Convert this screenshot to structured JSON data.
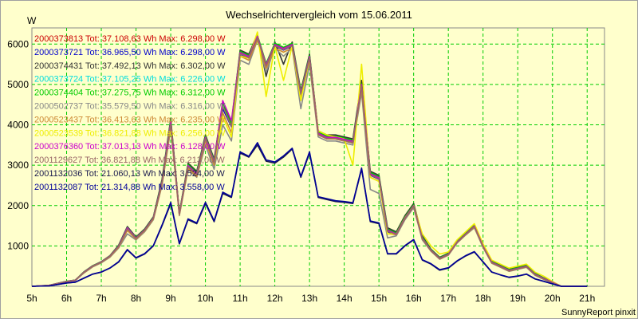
{
  "chart_data": {
    "type": "line",
    "title": "Wechselrichtervergleich vom 15.06.2011",
    "ylabel": "W",
    "footer": "SunnyReport pinxit",
    "ylim": [
      0,
      6400
    ],
    "y_ticks": [
      1000,
      2000,
      3000,
      4000,
      5000,
      6000
    ],
    "x_ticks": [
      "5h",
      "6h",
      "7h",
      "8h",
      "9h",
      "10h",
      "11h",
      "12h",
      "13h",
      "14h",
      "15h",
      "16h",
      "17h",
      "18h",
      "19h",
      "20h",
      "21h"
    ],
    "xlim": [
      5,
      21.5
    ],
    "grid": true,
    "legend_position": "top-left",
    "x": [
      5.0,
      5.5,
      6.0,
      6.25,
      6.5,
      6.75,
      7.0,
      7.25,
      7.5,
      7.75,
      8.0,
      8.25,
      8.5,
      8.75,
      9.0,
      9.25,
      9.5,
      9.75,
      10.0,
      10.25,
      10.5,
      10.75,
      11.0,
      11.25,
      11.5,
      11.75,
      12.0,
      12.25,
      12.5,
      12.75,
      13.0,
      13.25,
      13.5,
      13.75,
      14.0,
      14.25,
      14.5,
      14.75,
      15.0,
      15.25,
      15.5,
      15.75,
      16.0,
      16.25,
      16.5,
      16.75,
      17.0,
      17.25,
      17.5,
      17.75,
      18.0,
      18.25,
      18.5,
      18.75,
      19.0,
      19.25,
      19.5,
      19.75,
      20.0,
      20.25,
      20.5,
      20.75,
      21.0
    ],
    "series": [
      {
        "name": "2000373813 Tot: 37.108,63 Wh Max: 6.298,00 W",
        "color": "#cc0000",
        "values": [
          0,
          20,
          120,
          150,
          350,
          500,
          600,
          750,
          1000,
          1450,
          1200,
          1400,
          1700,
          2600,
          4100,
          1800,
          3000,
          2800,
          3700,
          3100,
          4500,
          4000,
          5800,
          5700,
          6200,
          5500,
          6000,
          5900,
          6000,
          4800,
          5700,
          3800,
          3700,
          3700,
          3650,
          3600,
          5000,
          2800,
          2700,
          1400,
          1300,
          1700,
          2000,
          1200,
          900,
          700,
          800,
          1100,
          1300,
          1500,
          1000,
          600,
          500,
          400,
          450,
          500,
          300,
          200,
          100,
          0,
          0,
          0,
          0
        ]
      },
      {
        "name": "2000373721 Tot: 36.965,50 Wh Max: 6.298,00 W",
        "color": "#0000cc",
        "values": [
          0,
          20,
          110,
          140,
          340,
          490,
          590,
          740,
          980,
          1400,
          1180,
          1380,
          1680,
          2550,
          4000,
          1780,
          2950,
          2750,
          3650,
          3050,
          4400,
          3950,
          5750,
          5650,
          6150,
          5450,
          5950,
          5850,
          5950,
          4750,
          5650,
          3750,
          3650,
          3650,
          3600,
          3550,
          4950,
          2750,
          2650,
          1350,
          1280,
          1680,
          1980,
          1180,
          880,
          680,
          780,
          1080,
          1280,
          1480,
          980,
          580,
          480,
          380,
          430,
          480,
          280,
          180,
          90,
          0,
          0,
          0,
          0
        ]
      },
      {
        "name": "2000374431 Tot: 37.492,13 Wh Max: 6.302,00 W",
        "color": "#333333",
        "values": [
          0,
          25,
          125,
          155,
          360,
          510,
          610,
          760,
          1020,
          1480,
          1220,
          1420,
          1720,
          2650,
          4150,
          1820,
          3050,
          2850,
          3750,
          3150,
          4550,
          4050,
          5850,
          5750,
          6250,
          5200,
          6050,
          5500,
          6050,
          4850,
          5750,
          3850,
          3750,
          3750,
          3700,
          3650,
          5100,
          2850,
          2750,
          1450,
          1350,
          1750,
          2050,
          1250,
          920,
          720,
          820,
          1120,
          1320,
          1520,
          1020,
          620,
          520,
          420,
          470,
          520,
          320,
          210,
          110,
          0,
          0,
          0,
          0
        ]
      },
      {
        "name": "2000373724 Tot: 37.105,25 Wh Max: 6.226,00 W",
        "color": "#00dddd",
        "values": [
          0,
          20,
          120,
          150,
          350,
          500,
          600,
          750,
          990,
          1440,
          1190,
          1390,
          1690,
          2580,
          4050,
          1790,
          2980,
          2780,
          3680,
          3080,
          4480,
          3980,
          5780,
          5680,
          6180,
          5480,
          5980,
          5880,
          5980,
          4780,
          5680,
          3780,
          3680,
          3680,
          3630,
          3580,
          4980,
          2780,
          2680,
          1380,
          1290,
          1690,
          1990,
          1190,
          890,
          690,
          790,
          1090,
          1290,
          1490,
          990,
          590,
          490,
          390,
          440,
          490,
          290,
          190,
          95,
          0,
          0,
          0,
          0
        ]
      },
      {
        "name": "2000374404 Tot: 37.275,75 Wh Max: 6.312,00 W",
        "color": "#00cc00",
        "values": [
          0,
          22,
          122,
          152,
          355,
          505,
          605,
          755,
          1005,
          1460,
          1205,
          1405,
          1705,
          2620,
          4120,
          1810,
          3020,
          2820,
          3720,
          3120,
          4520,
          4020,
          5820,
          5720,
          6220,
          5520,
          6020,
          5920,
          6020,
          4820,
          5720,
          3820,
          3720,
          3720,
          3670,
          3620,
          5020,
          2820,
          2720,
          1420,
          1320,
          1720,
          2020,
          1220,
          910,
          710,
          810,
          1110,
          1310,
          1510,
          1010,
          610,
          510,
          410,
          460,
          510,
          310,
          205,
          105,
          0,
          0,
          0,
          0
        ]
      },
      {
        "name": "2000502737 Tot: 35.579,50 Wh Max: 6.316,00 W",
        "color": "#888888",
        "values": [
          0,
          20,
          115,
          145,
          330,
          480,
          580,
          720,
          950,
          1300,
          1150,
          1350,
          1650,
          2500,
          3900,
          1750,
          2900,
          2700,
          3500,
          2900,
          4000,
          3600,
          5600,
          5500,
          6100,
          5300,
          5900,
          5700,
          5900,
          4400,
          5500,
          3700,
          3600,
          3600,
          3550,
          3500,
          4800,
          2400,
          2300,
          1200,
          1250,
          1650,
          1950,
          1150,
          870,
          670,
          770,
          1070,
          1270,
          1450,
          960,
          570,
          470,
          370,
          420,
          470,
          270,
          170,
          85,
          0,
          0,
          0,
          0
        ]
      },
      {
        "name": "2000523437 Tot: 36.413,63 Wh Max: 6.235,00 W",
        "color": "#cc8833",
        "values": [
          0,
          20,
          115,
          145,
          340,
          490,
          590,
          735,
          970,
          1380,
          1170,
          1370,
          1670,
          2520,
          3950,
          1770,
          2920,
          2720,
          3600,
          3000,
          4300,
          3800,
          5700,
          5600,
          6100,
          5400,
          5900,
          5800,
          5900,
          4700,
          5600,
          3750,
          3650,
          3650,
          3600,
          3550,
          4900,
          2700,
          2600,
          1300,
          1280,
          1680,
          1980,
          1180,
          880,
          680,
          780,
          1080,
          1280,
          1470,
          980,
          580,
          480,
          380,
          430,
          480,
          280,
          180,
          90,
          0,
          0,
          0,
          0
        ]
      },
      {
        "name": "2000523539 Tot: 36.821,88 Wh Max: 6.256,00 W",
        "color": "#eeee00",
        "values": [
          0,
          20,
          118,
          148,
          345,
          495,
          595,
          745,
          985,
          1420,
          1185,
          1385,
          1685,
          2560,
          4020,
          1785,
          2960,
          2760,
          3660,
          3060,
          4200,
          3700,
          5700,
          5650,
          6300,
          4700,
          5950,
          5100,
          5950,
          4600,
          5650,
          3850,
          3750,
          3700,
          3650,
          3000,
          5500,
          2700,
          2600,
          1300,
          1300,
          1700,
          2000,
          1300,
          1000,
          800,
          850,
          1150,
          1350,
          1550,
          1050,
          650,
          550,
          450,
          500,
          550,
          350,
          250,
          120,
          0,
          0,
          0,
          0
        ]
      },
      {
        "name": "2000376360 Tot: 37.013,13 Wh Max: 6.128,00 W",
        "color": "#cc00cc",
        "values": [
          0,
          22,
          120,
          150,
          350,
          500,
          600,
          750,
          995,
          1450,
          1195,
          1395,
          1695,
          2590,
          4080,
          1795,
          2990,
          2790,
          3690,
          3090,
          4600,
          4100,
          5790,
          5690,
          6190,
          5490,
          5990,
          5890,
          5990,
          4790,
          5690,
          3790,
          3690,
          3690,
          3640,
          3590,
          5000,
          2790,
          2690,
          1390,
          1295,
          1695,
          1995,
          1195,
          895,
          695,
          795,
          1095,
          1295,
          1495,
          995,
          595,
          495,
          395,
          445,
          495,
          295,
          195,
          98,
          0,
          0,
          0,
          0
        ]
      },
      {
        "name": "2001129627 Tot: 36.821,88 Wh Max: 6.213,00 W",
        "color": "#996666",
        "values": [
          0,
          20,
          118,
          148,
          345,
          495,
          595,
          745,
          985,
          1420,
          1185,
          1385,
          1685,
          2560,
          4020,
          1785,
          2960,
          2760,
          3660,
          3060,
          4460,
          3960,
          5760,
          5660,
          6160,
          5460,
          5960,
          5860,
          5960,
          4760,
          5660,
          3760,
          3660,
          3660,
          3610,
          3560,
          4960,
          2760,
          2660,
          1360,
          1285,
          1685,
          1985,
          1185,
          885,
          685,
          785,
          1085,
          1285,
          1485,
          985,
          585,
          485,
          385,
          435,
          485,
          285,
          185,
          92,
          0,
          0,
          0,
          0
        ]
      },
      {
        "name": "2001132036 Tot: 21.060,13 Wh Max: 3.524,00 W",
        "color": "#1a1a4d",
        "values": [
          0,
          10,
          80,
          100,
          200,
          300,
          350,
          450,
          600,
          900,
          700,
          800,
          1000,
          1500,
          2050,
          1050,
          1650,
          1550,
          2050,
          1600,
          2300,
          2200,
          3300,
          3200,
          3500,
          3100,
          3050,
          3200,
          3400,
          2700,
          3300,
          2200,
          2150,
          2100,
          2080,
          2050,
          2900,
          1600,
          1550,
          800,
          800,
          1000,
          1150,
          650,
          550,
          400,
          450,
          620,
          750,
          850,
          600,
          350,
          280,
          220,
          250,
          300,
          180,
          120,
          60,
          0,
          0,
          0,
          0
        ]
      },
      {
        "name": "2001132087 Tot: 21.314,88 Wh Max: 3.558,00 W",
        "color": "#000099",
        "values": [
          0,
          10,
          82,
          102,
          205,
          305,
          355,
          455,
          610,
          910,
          710,
          810,
          1010,
          1520,
          2080,
          1060,
          1670,
          1570,
          2080,
          1620,
          2330,
          2220,
          3330,
          3220,
          3558,
          3130,
          3080,
          3230,
          3420,
          2720,
          3330,
          2220,
          2170,
          2120,
          2100,
          2070,
          2930,
          1620,
          1570,
          810,
          810,
          1010,
          1160,
          660,
          560,
          410,
          460,
          630,
          760,
          860,
          610,
          355,
          285,
          225,
          255,
          305,
          185,
          125,
          62,
          0,
          0,
          0,
          0
        ]
      }
    ]
  }
}
